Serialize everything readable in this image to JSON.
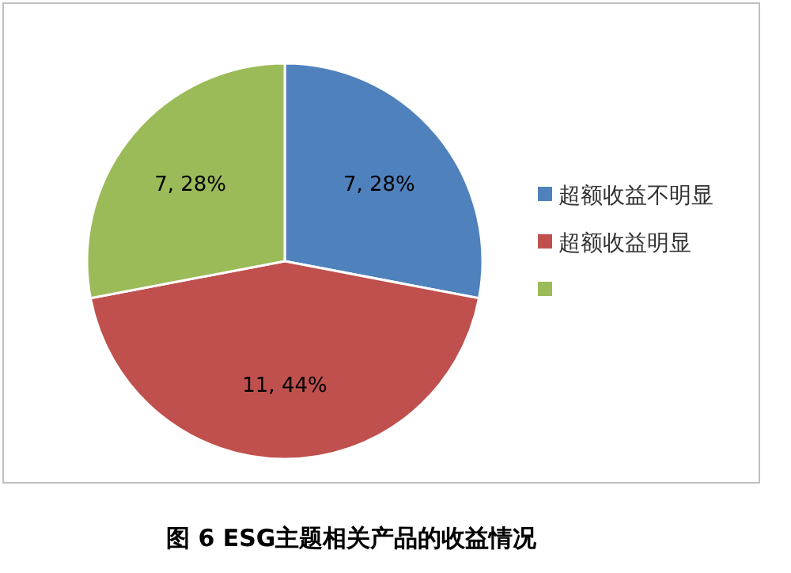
{
  "chart_data": {
    "type": "pie",
    "categories": [
      "超额收益不明显",
      "超额收益明显",
      null
    ],
    "values": [
      7,
      11,
      7
    ],
    "colors": [
      "#4f81bd",
      "#c0504d",
      "#9bbb59"
    ],
    "value_labels": [
      "7, 28%",
      "11, 44%",
      "7, 28%"
    ],
    "legend": "right",
    "annotations": [
      "图 6 ESG主题相关产品的收益情况"
    ]
  }
}
